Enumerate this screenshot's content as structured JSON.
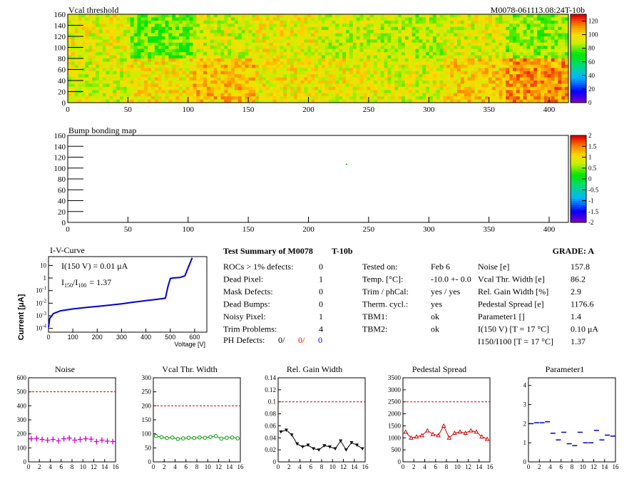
{
  "header": {
    "vcal_title": "Vcal threshold",
    "module_id": "M0078-061113.08:24T-10b",
    "bump_title": "Bump bonding map"
  },
  "colors": {
    "frame": "#000000",
    "iv_line": "#0000cc",
    "noise": "#cc00cc",
    "vcal": "#009900",
    "gain": "#000000",
    "pedestal": "#cc0000",
    "param1": "#0000cc",
    "limit": "#cc0000",
    "red_text": "#ff0000",
    "blue_text": "#0000ff"
  },
  "iv": {
    "title": "I-V-Curve",
    "ylabel": "Current [μA]",
    "xlabel": "Voltage [V]",
    "i150_prefix": "I(150 V) = 0.01 ",
    "i150_unit": "μA",
    "ratio_label": "I150/I100",
    "ratio_value": "=  1.37",
    "xticks": [
      "0",
      "100",
      "200",
      "300",
      "400",
      "500",
      "600"
    ],
    "yticks": [
      "10",
      "1",
      "10-1",
      "10-2",
      "10-3",
      "10-4"
    ]
  },
  "summary": {
    "title": "Test Summary of M0078",
    "subtitle": "T-10b",
    "grade": "GRADE:  A",
    "defects": [
      {
        "label": "ROCs > 1% defects:",
        "value": "0"
      },
      {
        "label": "Dead Pixel:",
        "value": "1"
      },
      {
        "label": "Mask Defects:",
        "value": "0"
      },
      {
        "label": "Dead Bumps:",
        "value": "0"
      },
      {
        "label": "Noisy Pixel:",
        "value": "1"
      },
      {
        "label": "Trim Problems:",
        "value": "4"
      }
    ],
    "ph_label": "PH Defects:",
    "ph_values": [
      "0/",
      "0/",
      "0"
    ],
    "conditions": [
      {
        "label": "Tested on:",
        "value": "Feb 6"
      },
      {
        "label": "Temp. [°C]:",
        "value": "-10.0 +- 0.0"
      },
      {
        "label": "Trim / phCal:",
        "value": "yes / yes"
      },
      {
        "label": "Therm. cycl.:",
        "value": "yes"
      },
      {
        "label": "TBM1:",
        "value": "ok"
      },
      {
        "label": "TBM2:",
        "value": "ok"
      }
    ],
    "results": [
      {
        "label": "Noise [e]",
        "value": "157.8"
      },
      {
        "label": "Vcal Thr. Width [e]",
        "value": "86.2"
      },
      {
        "label": "Rel. Gain Width [%]",
        "value": "2.9"
      },
      {
        "label": "Pedestal Spread [e]",
        "value": "1176.6"
      },
      {
        "label": "Parameter1 []",
        "value": "1.4"
      },
      {
        "label": "I(150 V) [T = 17 °C]",
        "value": "0.10 μA"
      },
      {
        "label": "I150/I100  [T = 17 °C]",
        "value": "1.37"
      }
    ]
  },
  "chart_data": [
    {
      "type": "heatmap",
      "title": "Vcal threshold",
      "x_range": [
        0,
        416
      ],
      "y_range": [
        0,
        160
      ],
      "xticks": [
        0,
        50,
        100,
        150,
        200,
        250,
        300,
        350,
        400
      ],
      "yticks": [
        0,
        20,
        40,
        60,
        80,
        100,
        120,
        140,
        160
      ],
      "z_range": [
        0,
        130
      ],
      "z_ticks": [
        0,
        20,
        40,
        60,
        80,
        100,
        120
      ],
      "block_means_top": [
        95,
        80,
        92,
        96,
        90,
        88,
        93,
        85
      ],
      "block_means_bottom": [
        93,
        98,
        105,
        97,
        96,
        93,
        102,
        112
      ]
    },
    {
      "type": "heatmap",
      "title": "Bump bonding map",
      "x_range": [
        0,
        416
      ],
      "y_range": [
        0,
        160
      ],
      "xticks": [
        0,
        50,
        100,
        150,
        200,
        250,
        300,
        350,
        400
      ],
      "yticks": [
        0,
        20,
        40,
        60,
        80,
        100,
        120,
        140,
        160
      ],
      "z_range": [
        -2,
        2
      ],
      "z_ticks": [
        -2,
        -1.5,
        -1,
        -0.5,
        0,
        0.5,
        1,
        1.5,
        2
      ],
      "points": [
        {
          "x": 231,
          "y": 108
        }
      ]
    },
    {
      "type": "line",
      "title": "I-V-Curve",
      "xlabel": "Voltage [V]",
      "ylabel": "Current [μA]",
      "x_range": [
        0,
        650
      ],
      "y_log_range": [
        5e-05,
        50
      ],
      "x": [
        0,
        5,
        20,
        50,
        100,
        150,
        200,
        250,
        300,
        350,
        400,
        450,
        480,
        490,
        500,
        510,
        540,
        560,
        575,
        590
      ],
      "y": [
        0.00012,
        0.0006,
        0.0015,
        0.0025,
        0.0035,
        0.0045,
        0.0055,
        0.007,
        0.009,
        0.012,
        0.016,
        0.021,
        0.025,
        0.2,
        0.9,
        1.0,
        1.1,
        1.5,
        8,
        40
      ]
    },
    {
      "type": "scatter",
      "title": "Noise",
      "x_range": [
        0,
        16
      ],
      "y_range": [
        0,
        600
      ],
      "yticks": [
        0,
        100,
        200,
        300,
        400,
        500,
        600
      ],
      "xticks": [
        0,
        2,
        4,
        6,
        8,
        10,
        12,
        14,
        16
      ],
      "limit": 500,
      "values": [
        165,
        168,
        160,
        155,
        160,
        150,
        165,
        170,
        155,
        160,
        165,
        162,
        145,
        155,
        148,
        145
      ]
    },
    {
      "type": "scatter",
      "title": "Vcal Thr. Width",
      "x_range": [
        0,
        16
      ],
      "y_range": [
        0,
        300
      ],
      "yticks": [
        0,
        50,
        100,
        150,
        200,
        250,
        300
      ],
      "xticks": [
        0,
        2,
        4,
        6,
        8,
        10,
        12,
        14,
        16
      ],
      "limit": 200,
      "values": [
        92,
        88,
        85,
        87,
        82,
        84,
        86,
        85,
        87,
        86,
        89,
        92,
        83,
        86,
        87,
        84
      ]
    },
    {
      "type": "line",
      "title": "Rel. Gain Width",
      "x_range": [
        0,
        16
      ],
      "y_range": [
        0,
        0.14
      ],
      "yticks": [
        0,
        0.02,
        0.04,
        0.06,
        0.08,
        0.1,
        0.12,
        0.14
      ],
      "xticks": [
        0,
        2,
        4,
        6,
        8,
        10,
        12,
        14,
        16
      ],
      "limit": 0.1,
      "values": [
        0.05,
        0.053,
        0.045,
        0.03,
        0.025,
        0.028,
        0.022,
        0.02,
        0.027,
        0.025,
        0.022,
        0.035,
        0.02,
        0.032,
        0.028,
        0.022
      ]
    },
    {
      "type": "line",
      "title": "Pedestal Spread",
      "x_range": [
        0,
        16
      ],
      "y_range": [
        0,
        3500
      ],
      "yticks": [
        0,
        500,
        1000,
        1500,
        2000,
        2500,
        3000,
        3500
      ],
      "xticks": [
        0,
        2,
        4,
        6,
        8,
        10,
        12,
        14,
        16
      ],
      "limit": 2500,
      "values": [
        1250,
        1000,
        1050,
        1100,
        1300,
        1150,
        1100,
        1500,
        1000,
        1200,
        1250,
        1200,
        1300,
        1250,
        1050,
        950
      ]
    },
    {
      "type": "scatter",
      "title": "Parameter1",
      "x_range": [
        0,
        16
      ],
      "y_range": [
        0,
        4.4
      ],
      "yticks": [
        0,
        1,
        2,
        3,
        4
      ],
      "xticks": [
        0,
        2,
        4,
        6,
        8,
        10,
        12,
        14,
        16
      ],
      "values": [
        2.0,
        2.05,
        2.05,
        2.1,
        1.5,
        1.15,
        1.55,
        0.95,
        0.85,
        1.55,
        1.0,
        1.0,
        1.65,
        1.15,
        1.4,
        1.35
      ]
    }
  ]
}
